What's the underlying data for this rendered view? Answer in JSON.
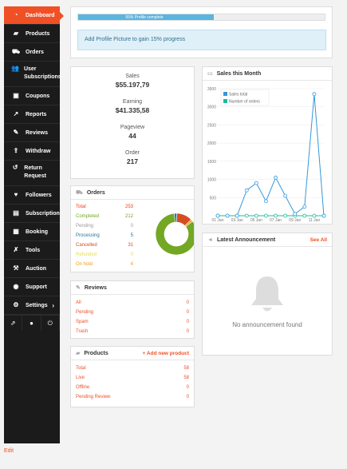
{
  "sidebar": {
    "items": [
      {
        "label": "Dashboard",
        "icon": "dashboard-icon"
      },
      {
        "label": "Products",
        "icon": "briefcase-icon"
      },
      {
        "label": "Orders",
        "icon": "cart-icon"
      },
      {
        "label": "User Subscriptions",
        "icon": "users-icon"
      },
      {
        "label": "Coupons",
        "icon": "gift-icon"
      },
      {
        "label": "Reports",
        "icon": "line-chart-icon"
      },
      {
        "label": "Reviews",
        "icon": "comments-icon"
      },
      {
        "label": "Withdraw",
        "icon": "upload-icon"
      },
      {
        "label": "Return Request",
        "icon": "undo-icon"
      },
      {
        "label": "Followers",
        "icon": "heart-icon"
      },
      {
        "label": "Subscription",
        "icon": "book-icon"
      },
      {
        "label": "Booking",
        "icon": "calendar-icon"
      },
      {
        "label": "Tools",
        "icon": "wrench-icon"
      },
      {
        "label": "Auction",
        "icon": "gavel-icon"
      },
      {
        "label": "Support",
        "icon": "lifebuoy-icon"
      },
      {
        "label": "Settings",
        "icon": "gear-icon"
      }
    ],
    "edit_label": "Edit"
  },
  "profile": {
    "progress_label": "55% Profile complete",
    "progress": 0.55,
    "notice": "Add Profile Picture to gain 15% progress"
  },
  "stats": {
    "sales_label": "Sales",
    "sales": "$55.197,79",
    "earning_label": "Earning",
    "earning": "$41.335,58",
    "pageview_label": "Pageview",
    "pageview": "44",
    "order_label": "Order",
    "order": "217"
  },
  "orders": {
    "title": "Orders",
    "rows": [
      {
        "label": "Total",
        "value": "253",
        "color": "#e2401c"
      },
      {
        "label": "Completed",
        "value": "212",
        "color": "#73a724"
      },
      {
        "label": "Pending",
        "value": "0",
        "color": "#999999"
      },
      {
        "label": "Processing",
        "value": "5",
        "color": "#21759b"
      },
      {
        "label": "Cancelled",
        "value": "31",
        "color": "#d54e21"
      },
      {
        "label": "Refunded",
        "value": "0",
        "color": "#e6db55"
      },
      {
        "label": "On hold",
        "value": "4",
        "color": "#f39c12"
      }
    ]
  },
  "reviews": {
    "title": "Reviews",
    "rows": [
      {
        "label": "All",
        "value": "0"
      },
      {
        "label": "Pending",
        "value": "0"
      },
      {
        "label": "Spam",
        "value": "0"
      },
      {
        "label": "Trash",
        "value": "0"
      }
    ]
  },
  "products": {
    "title": "Products",
    "add_label": "+ Add new product",
    "rows": [
      {
        "label": "Total",
        "value": "58"
      },
      {
        "label": "Live",
        "value": "58"
      },
      {
        "label": "Offline",
        "value": "0"
      },
      {
        "label": "Pending Review",
        "value": "0"
      }
    ]
  },
  "sales_chart": {
    "title": "Sales this Month",
    "legend": [
      "Sales total",
      "Number of orders"
    ]
  },
  "chart_data": {
    "type": "line",
    "x": [
      "01 Jan",
      "02 Jan",
      "03 Jan",
      "04 Jan",
      "05 Jan",
      "06 Jan",
      "07 Jan",
      "08 Jan",
      "09 Jan",
      "10 Jan",
      "11 Jan",
      "12 Jan"
    ],
    "xticks": [
      "01 Jan",
      "03 Jan",
      "05 Jan",
      "07 Jan",
      "09 Jan",
      "11 Jan"
    ],
    "series": [
      {
        "name": "Sales total",
        "values": [
          0,
          0,
          0,
          700,
          900,
          400,
          1050,
          550,
          50,
          250,
          3350,
          0
        ],
        "color": "#3498db"
      },
      {
        "name": "Number of orders",
        "values": [
          0,
          0,
          0,
          0,
          0,
          0,
          0,
          0,
          0,
          0,
          0,
          0
        ],
        "color": "#1abc9c"
      }
    ],
    "yticks": [
      "3500",
      "3000",
      "2500",
      "2000",
      "1500",
      "1000",
      "500"
    ],
    "ylim": [
      0,
      3500
    ],
    "grid": true,
    "legend_position": "top-left"
  },
  "announcement": {
    "title": "Latest Announcement",
    "see_all": "See All",
    "empty": "No announcement found"
  }
}
